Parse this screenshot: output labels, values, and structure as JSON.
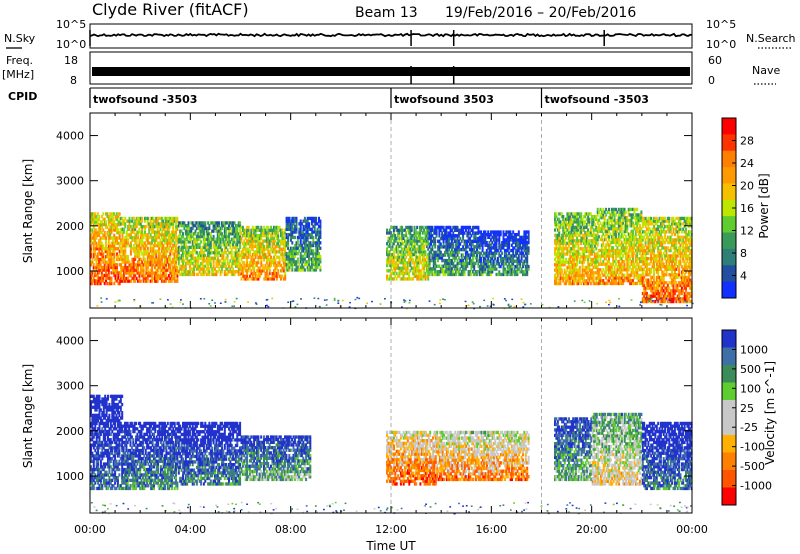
{
  "header": {
    "station": "Clyde River (fitACF)",
    "beam": "Beam 13",
    "date_range": "19/Feb/2016 – 20/Feb/2016"
  },
  "aux": {
    "nsky_label": "N.Sky",
    "nsky_ticks": [
      "10^5",
      "10^0"
    ],
    "nsearch_label": "N.Search",
    "nsearch_ticks": [
      "10^5",
      "10^0"
    ],
    "freq_label": "Freq.",
    "freq_unit": "[MHz]",
    "freq_ticks": [
      "18",
      "8"
    ],
    "nave_label": "Nave",
    "nave_ticks": [
      "60",
      "0"
    ],
    "cpid_label": "CPID",
    "cpid_segments": [
      {
        "start": 0,
        "end": 12,
        "label": "twofsound -3503"
      },
      {
        "start": 12,
        "end": 18,
        "label": "twofsound 3503"
      },
      {
        "start": 18,
        "end": 24,
        "label": "twofsound -3503"
      }
    ]
  },
  "chart_data": [
    {
      "type": "heatmap",
      "quantity": "Power",
      "ylabel": "Slant Range [km]",
      "xlabel": "",
      "xlim": [
        0,
        24
      ],
      "ylim": [
        180,
        4500
      ],
      "yticks": [
        1000,
        2000,
        3000,
        4000
      ],
      "xticks": [
        "00:00",
        "04:00",
        "08:00",
        "12:00",
        "16:00",
        "20:00",
        "00:00"
      ],
      "colorbar": {
        "label": "Power [dB]",
        "ticks": [
          "28",
          "24",
          "20",
          "16",
          "12",
          "8",
          "4"
        ],
        "colors": [
          "#ff0000",
          "#ff3300",
          "#ff8000",
          "#ff9900",
          "#f5c000",
          "#bde600",
          "#5fcc30",
          "#3a9a5a",
          "#2f7f77",
          "#234fa0",
          "#1230ff"
        ]
      },
      "regions": [
        {
          "t0": 0.0,
          "t1": 1.2,
          "r0": 700,
          "r1": 2300,
          "level": 0.85
        },
        {
          "t0": 1.2,
          "t1": 3.5,
          "r0": 750,
          "r1": 2200,
          "level": 0.8
        },
        {
          "t0": 3.5,
          "t1": 6.0,
          "r0": 900,
          "r1": 2100,
          "level": 0.6
        },
        {
          "t0": 6.0,
          "t1": 7.8,
          "r0": 800,
          "r1": 2000,
          "level": 0.75
        },
        {
          "t0": 7.8,
          "t1": 9.2,
          "r0": 1000,
          "r1": 2200,
          "level": 0.4
        },
        {
          "t0": 11.8,
          "t1": 13.5,
          "r0": 800,
          "r1": 2000,
          "level": 0.6
        },
        {
          "t0": 13.5,
          "t1": 15.5,
          "r0": 900,
          "r1": 2000,
          "level": 0.35
        },
        {
          "t0": 15.5,
          "t1": 17.5,
          "r0": 900,
          "r1": 1900,
          "level": 0.3
        },
        {
          "t0": 18.5,
          "t1": 20.2,
          "r0": 700,
          "r1": 2300,
          "level": 0.7
        },
        {
          "t0": 20.2,
          "t1": 22.0,
          "r0": 700,
          "r1": 2400,
          "level": 0.7
        },
        {
          "t0": 22.0,
          "t1": 24.0,
          "r0": 300,
          "r1": 2200,
          "level": 0.8
        }
      ]
    },
    {
      "type": "heatmap",
      "quantity": "Velocity",
      "ylabel": "Slant Range [km]",
      "xlabel": "Time UT",
      "xlim": [
        0,
        24
      ],
      "ylim": [
        180,
        4500
      ],
      "yticks": [
        1000,
        2000,
        3000,
        4000
      ],
      "xticks": [
        "00:00",
        "04:00",
        "08:00",
        "12:00",
        "16:00",
        "20:00",
        "00:00"
      ],
      "colorbar": {
        "label": "Velocity [m s^-1]",
        "ticks": [
          "1000",
          "500",
          "100",
          "25",
          "-25",
          "-100",
          "-500",
          "-1000"
        ],
        "colors": [
          "#2233cc",
          "#3f6fa8",
          "#3c8c5a",
          "#5fcc30",
          "#c8c8c8",
          "#c8c8c8",
          "#ffb000",
          "#ff8000",
          "#ff5500",
          "#ff0000"
        ]
      },
      "regions": [
        {
          "t0": 0.0,
          "t1": 1.3,
          "r0": 700,
          "r1": 2800,
          "level": 0.15
        },
        {
          "t0": 1.3,
          "t1": 3.5,
          "r0": 700,
          "r1": 2200,
          "level": 0.25
        },
        {
          "t0": 3.5,
          "t1": 6.0,
          "r0": 800,
          "r1": 2200,
          "level": 0.2
        },
        {
          "t0": 6.0,
          "t1": 8.8,
          "r0": 900,
          "r1": 1900,
          "level": 0.35
        },
        {
          "t0": 11.8,
          "t1": 13.8,
          "r0": 800,
          "r1": 2000,
          "level": 0.85
        },
        {
          "t0": 13.8,
          "t1": 17.5,
          "r0": 900,
          "r1": 2000,
          "level": 0.78
        },
        {
          "t0": 18.5,
          "t1": 20.0,
          "r0": 900,
          "r1": 2300,
          "level": 0.35
        },
        {
          "t0": 20.0,
          "t1": 22.0,
          "r0": 800,
          "r1": 2400,
          "level": 0.6
        },
        {
          "t0": 22.0,
          "t1": 24.0,
          "r0": 700,
          "r1": 2200,
          "level": 0.2
        }
      ]
    }
  ]
}
